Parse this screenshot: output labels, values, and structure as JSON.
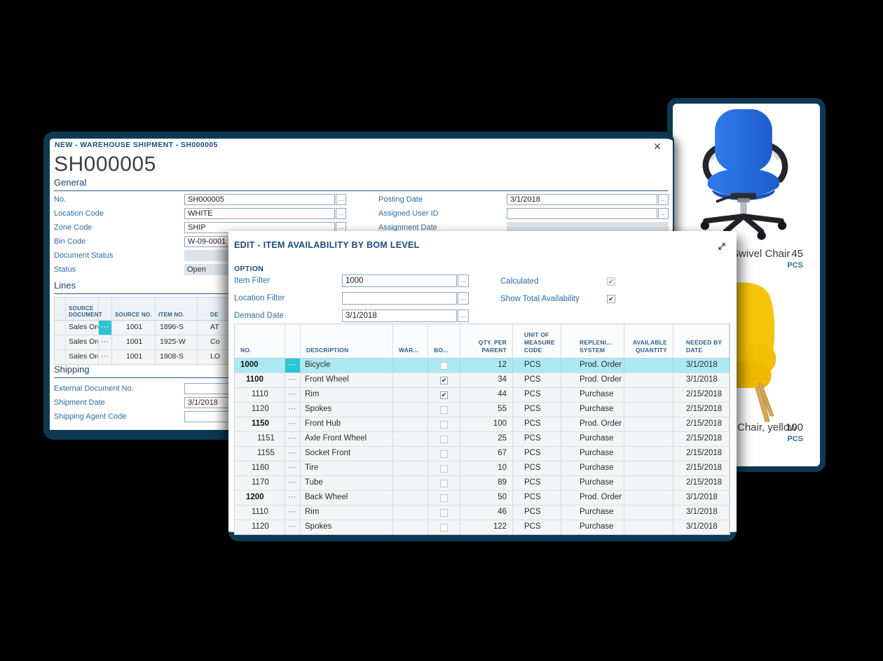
{
  "colors": {
    "frame_navy": "#0e3952",
    "heading_blue": "#1d4d7a",
    "label_blue": "#2f6da3",
    "selection_cyan": "#2cc5d5",
    "selected_row": "#ade9f1",
    "disabled_field": "#dce3e9"
  },
  "shipment_window": {
    "window_title": "NEW - WAREHOUSE SHIPMENT - SH000005",
    "close_icon": "✕",
    "page_title": "SH000005",
    "general_section": {
      "heading": "General",
      "fields_left": [
        {
          "label": "No.",
          "value": "SH000005",
          "type": "lookup"
        },
        {
          "label": "Location Code",
          "value": "WHITE",
          "type": "lookup"
        },
        {
          "label": "Zone Code",
          "value": "SHIP",
          "type": "lookup"
        },
        {
          "label": "Bin Code",
          "value": "W-09-0001",
          "type": "lookup"
        },
        {
          "label": "Document Status",
          "value": "",
          "type": "disabled"
        },
        {
          "label": "Status",
          "value": "Open",
          "type": "disabled"
        }
      ],
      "fields_right": [
        {
          "label": "Posting Date",
          "value": "3/1/2018",
          "type": "lookup"
        },
        {
          "label": "Assigned User ID",
          "value": "",
          "type": "lookup"
        },
        {
          "label": "Assignment Date",
          "value": "",
          "type": "disabled"
        }
      ]
    },
    "lines_section": {
      "heading": "Lines",
      "columns": [
        "SOURCE DOCUMENT",
        "SOURCE NO.",
        "ITEM NO.",
        "DE"
      ],
      "rows": [
        {
          "source_document": "Sales Order",
          "source_no": "1001",
          "item_no": "1896-S",
          "description": "AT",
          "selected": true
        },
        {
          "source_document": "Sales Order",
          "source_no": "1001",
          "item_no": "1925-W",
          "description": "Co",
          "selected": false
        },
        {
          "source_document": "Sales Order",
          "source_no": "1001",
          "item_no": "1908-S",
          "description": "LO",
          "selected": false
        }
      ]
    },
    "shipping_section": {
      "heading": "Shipping",
      "fields": [
        {
          "label": "External Document No.",
          "value": "",
          "type": "input"
        },
        {
          "label": "Shipment Date",
          "value": "3/1/2018",
          "type": "input"
        },
        {
          "label": "Shipping Agent Code",
          "value": "",
          "type": "input"
        }
      ]
    }
  },
  "bom_dialog": {
    "title": "EDIT - ITEM AVAILABILITY BY BOM LEVEL",
    "option_heading": "OPTION",
    "filters": [
      {
        "label": "Item Filter",
        "value": "1000"
      },
      {
        "label": "Location Filter",
        "value": ""
      },
      {
        "label": "Demand Date",
        "value": "3/1/2018"
      }
    ],
    "toggles": [
      {
        "label": "Calculated",
        "checked": true,
        "disabled": true
      },
      {
        "label": "Show Total Availability",
        "checked": true,
        "disabled": false
      }
    ],
    "table": {
      "columns": [
        "NO.",
        "DESCRIPTION",
        "WAR...",
        "BO...",
        "QTY. PER PARENT",
        "UNIT OF MEASURE CODE",
        "REPLENI... SYSTEM",
        "AVAILABLE QUANTITY",
        "NEEDED BY DATE"
      ],
      "rows": [
        {
          "no": "1000",
          "level": 0,
          "bold": true,
          "description": "Bicycle",
          "bom": "disabled",
          "qty_per_parent": "12",
          "unit_of_measure": "PCS",
          "replenishment_system": "Prod. Order",
          "available_quantity": "",
          "needed_by_date": "3/1/2018",
          "selected": true
        },
        {
          "no": "1100",
          "level": 1,
          "bold": true,
          "description": "Front Wheel",
          "bom": "checked",
          "qty_per_parent": "34",
          "unit_of_measure": "PCS",
          "replenishment_system": "Prod. Order",
          "available_quantity": "",
          "needed_by_date": "3/1/2018",
          "selected": false
        },
        {
          "no": "1110",
          "level": 2,
          "bold": false,
          "description": "Rim",
          "bom": "checked",
          "qty_per_parent": "44",
          "unit_of_measure": "PCS",
          "replenishment_system": "Purchase",
          "available_quantity": "",
          "needed_by_date": "2/15/2018",
          "selected": false
        },
        {
          "no": "1120",
          "level": 2,
          "bold": false,
          "description": "Spokes",
          "bom": "unchecked",
          "qty_per_parent": "55",
          "unit_of_measure": "PCS",
          "replenishment_system": "Purchase",
          "available_quantity": "",
          "needed_by_date": "2/15/2018",
          "selected": false
        },
        {
          "no": "1150",
          "level": 2,
          "bold": true,
          "description": "Front Hub",
          "bom": "unchecked",
          "qty_per_parent": "100",
          "unit_of_measure": "PCS",
          "replenishment_system": "Prod. Order",
          "available_quantity": "",
          "needed_by_date": "2/15/2018",
          "selected": false
        },
        {
          "no": "1151",
          "level": 3,
          "bold": false,
          "description": "Axle Front Wheel",
          "bom": "unchecked",
          "qty_per_parent": "25",
          "unit_of_measure": "PCS",
          "replenishment_system": "Purchase",
          "available_quantity": "",
          "needed_by_date": "2/15/2018",
          "selected": false
        },
        {
          "no": "1155",
          "level": 3,
          "bold": false,
          "description": "Socket Front",
          "bom": "unchecked",
          "qty_per_parent": "67",
          "unit_of_measure": "PCS",
          "replenishment_system": "Purchase",
          "available_quantity": "",
          "needed_by_date": "2/15/2018",
          "selected": false
        },
        {
          "no": "1160",
          "level": 2,
          "bold": false,
          "description": "Tire",
          "bom": "unchecked",
          "qty_per_parent": "10",
          "unit_of_measure": "PCS",
          "replenishment_system": "Purchase",
          "available_quantity": "",
          "needed_by_date": "2/15/2018",
          "selected": false
        },
        {
          "no": "1170",
          "level": 2,
          "bold": false,
          "description": "Tube",
          "bom": "unchecked",
          "qty_per_parent": "89",
          "unit_of_measure": "PCS",
          "replenishment_system": "Purchase",
          "available_quantity": "",
          "needed_by_date": "2/15/2018",
          "selected": false
        },
        {
          "no": "1200",
          "level": 1,
          "bold": true,
          "description": "Back Wheel",
          "bom": "unchecked",
          "qty_per_parent": "50",
          "unit_of_measure": "PCS",
          "replenishment_system": "Prod. Order",
          "available_quantity": "",
          "needed_by_date": "3/1/2018",
          "selected": false
        },
        {
          "no": "1110",
          "level": 2,
          "bold": false,
          "description": "Rim",
          "bom": "unchecked",
          "qty_per_parent": "46",
          "unit_of_measure": "PCS",
          "replenishment_system": "Purchase",
          "available_quantity": "",
          "needed_by_date": "3/1/2018",
          "selected": false
        },
        {
          "no": "1120",
          "level": 2,
          "bold": false,
          "description": "Spokes",
          "bom": "unchecked",
          "qty_per_parent": "122",
          "unit_of_measure": "PCS",
          "replenishment_system": "Purchase",
          "available_quantity": "",
          "needed_by_date": "3/1/2018",
          "selected": false
        }
      ]
    }
  },
  "item_panel": {
    "items": [
      {
        "image_icon": "blue-swivel-chair",
        "name": "Swivel Chair",
        "quantity": "45",
        "unit": "PCS"
      },
      {
        "image_icon": "yellow-armchair",
        "name": "Chair, yellow",
        "quantity": "100",
        "unit": "PCS"
      }
    ]
  }
}
